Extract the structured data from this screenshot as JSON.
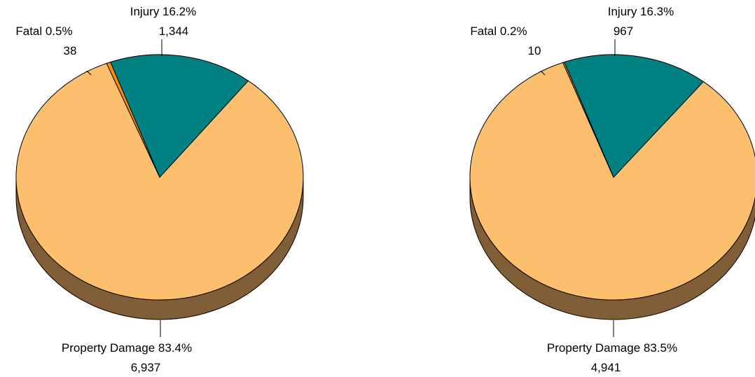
{
  "chart_data": [
    {
      "type": "pie",
      "slices": [
        {
          "name": "Injury",
          "percent_label": "16.2%",
          "value": 1344,
          "count_label": "1,344",
          "color": "#008080"
        },
        {
          "name": "Property Damage",
          "percent_label": "83.4%",
          "value": 6937,
          "count_label": "6,937",
          "color": "#FCBF6E"
        },
        {
          "name": "Fatal",
          "percent_label": "0.5%",
          "value": 38,
          "count_label": "38",
          "color": "#FF8C00"
        }
      ],
      "side_color": "#7F5E38"
    },
    {
      "type": "pie",
      "slices": [
        {
          "name": "Injury",
          "percent_label": "16.3%",
          "value": 967,
          "count_label": "967",
          "color": "#008080"
        },
        {
          "name": "Property Damage",
          "percent_label": "83.5%",
          "value": 4941,
          "count_label": "4,941",
          "color": "#FCBF6E"
        },
        {
          "name": "Fatal",
          "percent_label": "0.2%",
          "value": 10,
          "count_label": "10",
          "color": "#FF8C00"
        }
      ],
      "side_color": "#7F5E38"
    }
  ]
}
